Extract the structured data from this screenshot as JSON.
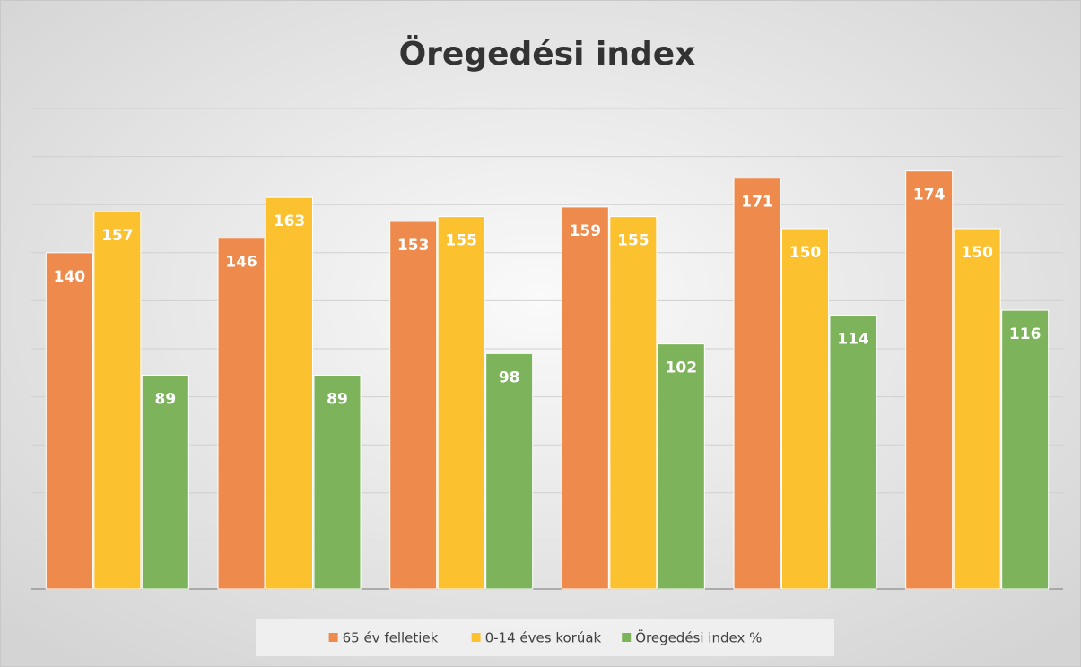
{
  "chart_data": {
    "type": "bar",
    "title": "Öregedési index",
    "categories": [
      null,
      null,
      null,
      null,
      null,
      null
    ],
    "series": [
      {
        "name": "65 év felletiek",
        "color": "#ed8a4c",
        "values": [
          140,
          146,
          153,
          159,
          171,
          174
        ]
      },
      {
        "name": "0-14 éves korúak",
        "color": "#fbc12e",
        "values": [
          157,
          163,
          155,
          155,
          150,
          150
        ]
      },
      {
        "name": "Öregedési index %",
        "color": "#7db35a",
        "values": [
          89,
          89,
          98,
          102,
          114,
          116
        ]
      }
    ],
    "ylim": [
      0,
      200
    ],
    "yticks": [
      0,
      20,
      40,
      60,
      80,
      100,
      120,
      140,
      160,
      180,
      200
    ],
    "grid": true,
    "legend": "bottom"
  }
}
